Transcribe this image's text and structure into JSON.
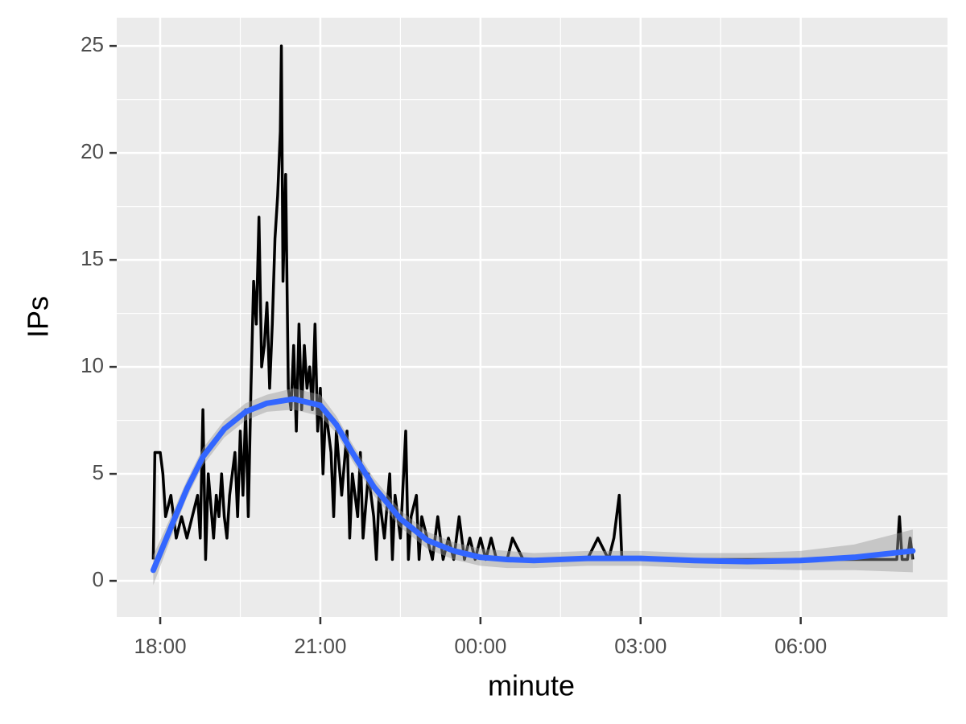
{
  "chart_data": {
    "type": "line",
    "x_label": "minute",
    "y_label": "IPs",
    "xlim": [
      17.185,
      32.75
    ],
    "ylim": [
      -1.69,
      26.32
    ],
    "xticks": [
      {
        "value": 18,
        "label": "18:00"
      },
      {
        "value": 21,
        "label": "21:00"
      },
      {
        "value": 24,
        "label": "00:00"
      },
      {
        "value": 27,
        "label": "03:00"
      },
      {
        "value": 30,
        "label": "06:00"
      }
    ],
    "yticks": [
      0,
      5,
      10,
      15,
      20,
      25
    ],
    "grid": true,
    "color": "#000000",
    "x": [
      17.87,
      17.9,
      18.0,
      18.05,
      18.1,
      18.2,
      18.25,
      18.3,
      18.4,
      18.5,
      18.6,
      18.7,
      18.75,
      18.8,
      18.85,
      18.9,
      19.0,
      19.05,
      19.1,
      19.15,
      19.2,
      19.25,
      19.3,
      19.4,
      19.45,
      19.5,
      19.55,
      19.6,
      19.65,
      19.7,
      19.75,
      19.8,
      19.85,
      19.9,
      19.95,
      20.0,
      20.05,
      20.1,
      20.15,
      20.2,
      20.25,
      20.27,
      20.3,
      20.35,
      20.4,
      20.45,
      20.5,
      20.55,
      20.6,
      20.65,
      20.7,
      20.75,
      20.8,
      20.85,
      20.9,
      20.95,
      21.0,
      21.05,
      21.1,
      21.2,
      21.25,
      21.3,
      21.4,
      21.5,
      21.55,
      21.6,
      21.7,
      21.75,
      21.8,
      21.9,
      22.0,
      22.05,
      22.1,
      22.2,
      22.3,
      22.35,
      22.4,
      22.5,
      22.6,
      22.65,
      22.7,
      22.8,
      22.85,
      22.9,
      23.0,
      23.1,
      23.2,
      23.3,
      23.4,
      23.5,
      23.6,
      23.7,
      23.8,
      23.9,
      24.0,
      24.1,
      24.2,
      24.3,
      24.5,
      24.6,
      24.8,
      25.0,
      25.5,
      26.0,
      26.2,
      26.4,
      26.5,
      26.6,
      26.65,
      26.8,
      27.0,
      28.0,
      29.0,
      30.0,
      31.0,
      31.8,
      31.85,
      31.9,
      32.0,
      32.05,
      32.1
    ],
    "values": [
      1,
      6,
      6,
      5,
      3,
      4,
      3,
      2,
      3,
      2,
      3,
      4,
      2,
      8,
      1,
      5,
      2,
      4,
      3,
      5,
      3,
      2,
      4,
      6,
      3,
      7,
      4,
      8,
      3,
      9,
      14,
      12,
      17,
      10,
      11,
      13,
      9,
      12,
      16,
      18,
      21,
      25,
      14,
      19,
      9,
      8,
      11,
      7,
      12,
      8,
      11,
      9,
      10,
      8,
      12,
      7,
      9,
      5,
      8,
      6,
      3,
      7,
      4,
      7,
      2,
      5,
      3,
      6,
      2,
      5,
      3,
      1,
      4,
      2,
      5,
      1,
      4,
      2,
      7,
      1,
      3,
      4,
      1,
      3,
      2,
      1,
      3,
      1,
      2,
      1,
      3,
      1,
      2,
      1,
      2,
      1,
      2,
      1,
      1,
      2,
      1,
      1,
      1,
      1,
      2,
      1,
      2,
      4,
      1,
      1,
      1,
      1,
      1,
      1,
      1,
      1,
      3,
      1,
      1,
      2,
      1
    ],
    "smooth": {
      "color": "#3366ff",
      "x": [
        17.87,
        18.2,
        18.5,
        18.8,
        19.2,
        19.6,
        20.0,
        20.5,
        21.0,
        21.3,
        21.6,
        22.0,
        22.5,
        23.0,
        23.5,
        24.0,
        24.5,
        25.0,
        26.0,
        27.0,
        28.0,
        29.0,
        30.0,
        31.0,
        32.1
      ],
      "values": [
        0.5,
        2.5,
        4.3,
        5.8,
        7.1,
        7.9,
        8.3,
        8.5,
        8.2,
        7.3,
        6.0,
        4.4,
        2.9,
        1.9,
        1.4,
        1.1,
        1.0,
        0.95,
        1.05,
        1.05,
        0.95,
        0.9,
        0.95,
        1.1,
        1.4
      ],
      "lower": [
        -0.2,
        2.0,
        3.9,
        5.4,
        6.7,
        7.5,
        7.9,
        8.0,
        7.7,
        6.9,
        5.6,
        4.0,
        2.5,
        1.5,
        1.0,
        0.7,
        0.6,
        0.6,
        0.7,
        0.7,
        0.6,
        0.55,
        0.5,
        0.5,
        0.4
      ],
      "upper": [
        1.2,
        3.0,
        4.7,
        6.2,
        7.5,
        8.3,
        8.7,
        9.0,
        8.7,
        7.7,
        6.4,
        4.8,
        3.3,
        2.3,
        1.8,
        1.5,
        1.4,
        1.3,
        1.4,
        1.4,
        1.3,
        1.3,
        1.4,
        1.7,
        2.4
      ]
    }
  }
}
